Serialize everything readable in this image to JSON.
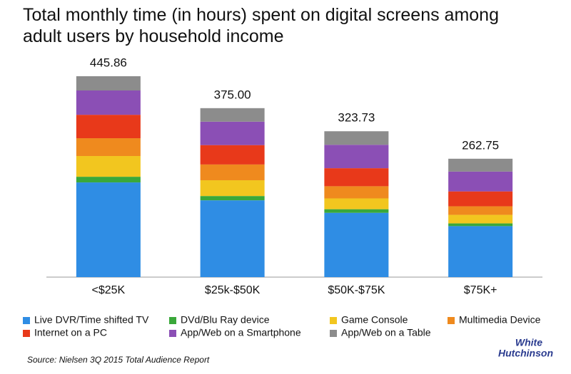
{
  "chart_data": {
    "type": "stacked_bar",
    "title": "Total monthly time (in hours) spent on digital screens among adult users by household income",
    "categories": [
      "<$25K",
      "$25k-$50K",
      "$50K-$75K",
      "$75K+"
    ],
    "totals": [
      445.86,
      375.0,
      323.73,
      262.75
    ],
    "value_labels": [
      "445.86",
      "375.00",
      "323.73",
      "262.75"
    ],
    "series": [
      {
        "name": "Live DVR/Time shifted TV",
        "color": "#2f8de4",
        "values": [
          210.16,
          170.5,
          142.73,
          113.25
        ]
      },
      {
        "name": "DVd/Blu Ray device",
        "color": "#3aa83a",
        "values": [
          12.6,
          9.5,
          8,
          6
        ]
      },
      {
        "name": "Game Console",
        "color": "#f2c61f",
        "values": [
          46,
          35,
          24,
          19
        ]
      },
      {
        "name": "Multimedia Device",
        "color": "#ef8a1e",
        "values": [
          39.5,
          35,
          27,
          19
        ]
      },
      {
        "name": "Internet on a PC",
        "color": "#e8391a",
        "values": [
          52,
          43,
          40,
          33
        ]
      },
      {
        "name": "App/Web on a Smartphone",
        "color": "#8b4fb5",
        "values": [
          54,
          52,
          52,
          44
        ]
      },
      {
        "name": "App/Web on a Table",
        "color": "#8c8c8c",
        "values": [
          31.6,
          30,
          30,
          28.5
        ]
      }
    ],
    "source": "Source: Nielsen 3Q 2015 Total Audience Report",
    "logo": [
      "White",
      "Hutchinson"
    ]
  }
}
